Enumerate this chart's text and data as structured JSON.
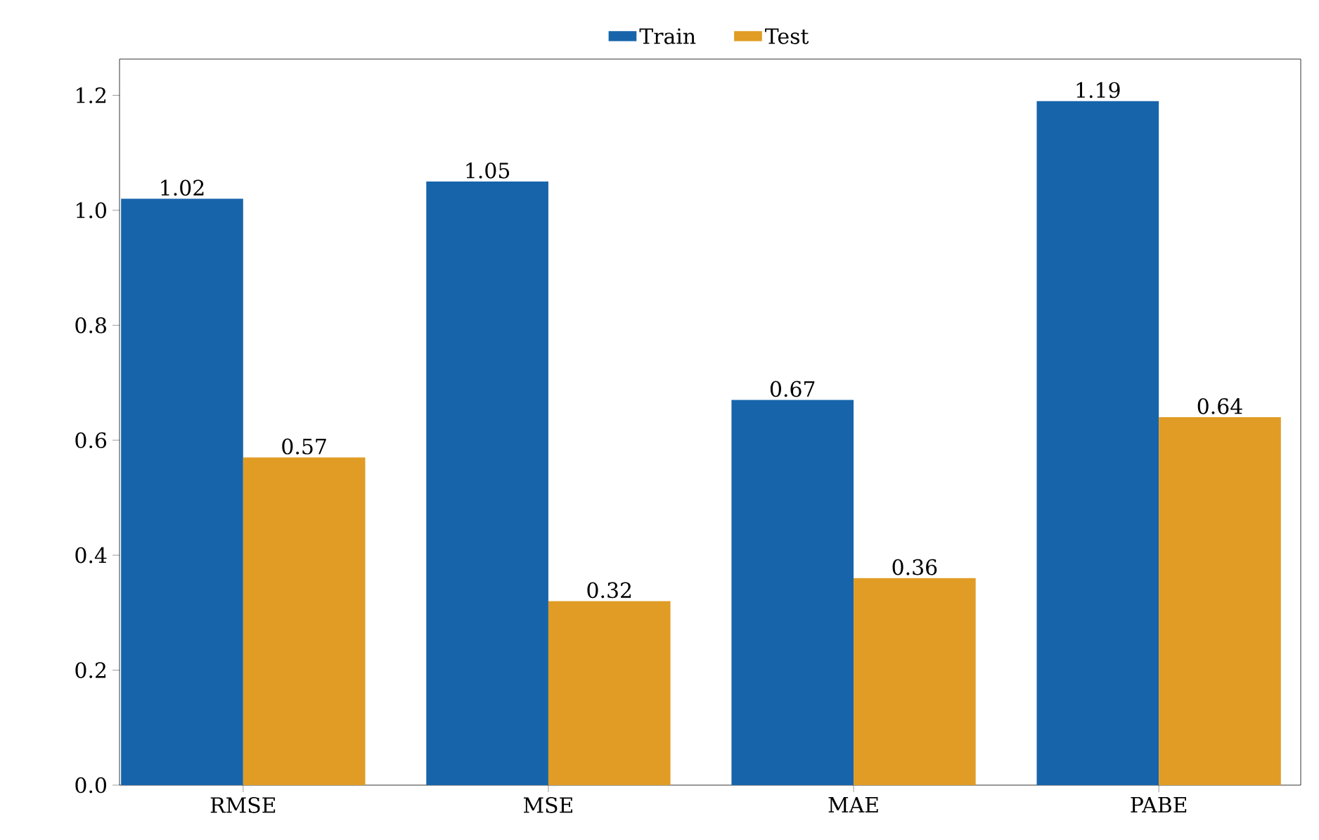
{
  "chart_data": {
    "type": "bar",
    "categories": [
      "RMSE",
      "MSE",
      "MAE",
      "PABE"
    ],
    "series": [
      {
        "name": "Train",
        "color": "#1764ab",
        "values": [
          1.02,
          1.05,
          0.67,
          1.19
        ]
      },
      {
        "name": "Test",
        "color": "#e09c24",
        "values": [
          0.57,
          0.32,
          0.36,
          0.64
        ]
      }
    ],
    "ylim": [
      0,
      1.263
    ],
    "yticks": [
      {
        "value": 0,
        "label": "0.0"
      },
      {
        "value": 0.2,
        "label": "0.2"
      },
      {
        "value": 0.4,
        "label": "0.4"
      },
      {
        "value": 0.6,
        "label": "0.6"
      },
      {
        "value": 0.8,
        "label": "0.8"
      },
      {
        "value": 1.0,
        "label": "1.0"
      },
      {
        "value": 1.2,
        "label": "1.2"
      }
    ],
    "data_labels": true,
    "legend": "top",
    "grid": false
  }
}
